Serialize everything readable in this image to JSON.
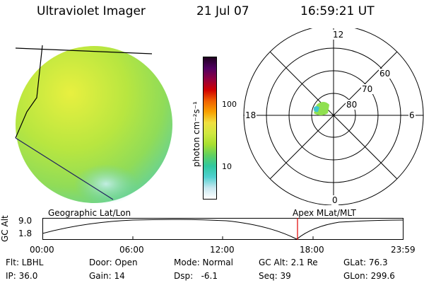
{
  "header": {
    "title": "Ultraviolet Imager",
    "date": "21 Jul 07",
    "time": "16:59:21 UT"
  },
  "colorbar": {
    "unit_label": "photon cm⁻²s⁻¹",
    "ticks": [
      "100",
      "10"
    ],
    "colors": [
      "#ffffff",
      "#c8e8f0",
      "#50d0d0",
      "#30c8a0",
      "#60d060",
      "#a8e030",
      "#d0e840",
      "#f0e040",
      "#f8a000",
      "#f06000",
      "#d00000",
      "#900040",
      "#500060",
      "#200020"
    ]
  },
  "polar": {
    "mlt_labels": [
      "12",
      "18",
      "6",
      "0"
    ],
    "lat_labels": [
      "60",
      "70",
      "80"
    ]
  },
  "timeline": {
    "left_title": "Geographic Lat/Lon",
    "right_title": "Apex  MLat/MLT",
    "ylabel": "GC Alt",
    "y_ticks": [
      "9.0",
      "1.8"
    ],
    "x_ticks": [
      "00:00",
      "06:00",
      "12:00",
      "18:00",
      "23:59"
    ]
  },
  "footer": {
    "row1": [
      "Flt: LBHL",
      "Door: Open",
      "Mode: Normal",
      "GC Alt: 2.1 Re",
      "GLat: 76.3"
    ],
    "row2": [
      "IP: 36.0",
      "Gain: 14",
      "Dsp:   -6.1",
      "Seq: 39",
      "GLon: 299.6"
    ]
  },
  "colors": {
    "disk_fill": "#b8e640",
    "disk_mid": "#98dc50",
    "time_marker": "#e00000",
    "coast_line": "#202060"
  }
}
